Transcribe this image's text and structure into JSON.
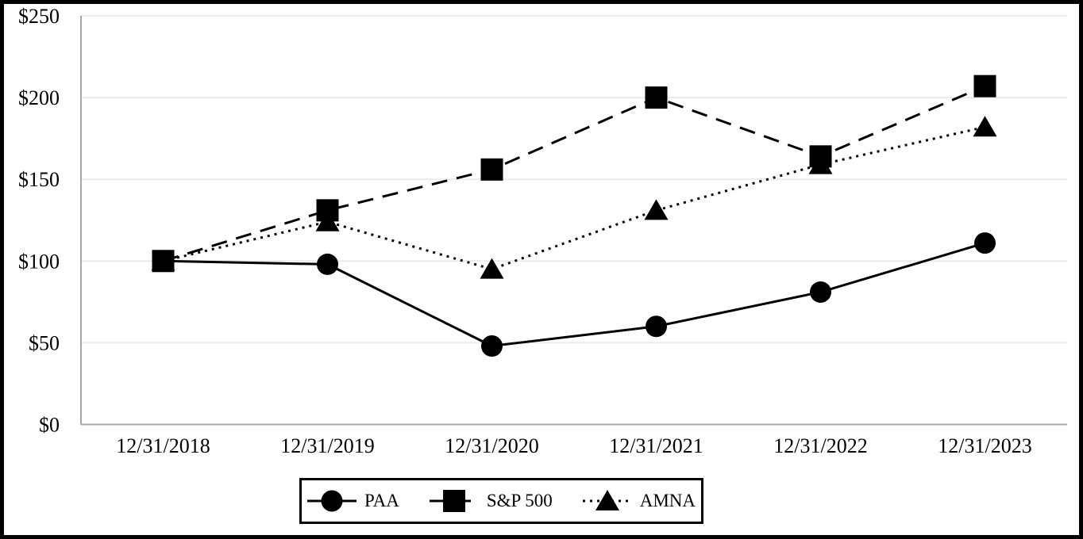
{
  "chart_data": {
    "type": "line",
    "x_labels": [
      "12/31/2018",
      "12/31/2019",
      "12/31/2020",
      "12/31/2021",
      "12/31/2022",
      "12/31/2023"
    ],
    "series": [
      {
        "name": "PAA",
        "marker": "circle",
        "line_style": "solid",
        "values": [
          100,
          98,
          48,
          60,
          81,
          111
        ]
      },
      {
        "name": "S&P 500",
        "marker": "square",
        "line_style": "dashed",
        "values": [
          100,
          131,
          156,
          200,
          164,
          207
        ]
      },
      {
        "name": "AMNA",
        "marker": "triangle",
        "line_style": "dotted",
        "values": [
          100,
          124,
          95,
          131,
          159,
          182
        ]
      }
    ],
    "y_ticks": [
      {
        "value": 0,
        "label": "$0"
      },
      {
        "value": 50,
        "label": "$50"
      },
      {
        "value": 100,
        "label": "$100"
      },
      {
        "value": 150,
        "label": "$150"
      },
      {
        "value": 200,
        "label": "$200"
      },
      {
        "value": 250,
        "label": "$250"
      }
    ],
    "ylim": [
      0,
      250
    ],
    "grid": true,
    "legend_position": "bottom",
    "colors": {
      "series": "#000000",
      "gridline": "#ebebeb",
      "axis": "#a6a6a6",
      "frame": "#000000",
      "background": "#ffffff"
    }
  }
}
